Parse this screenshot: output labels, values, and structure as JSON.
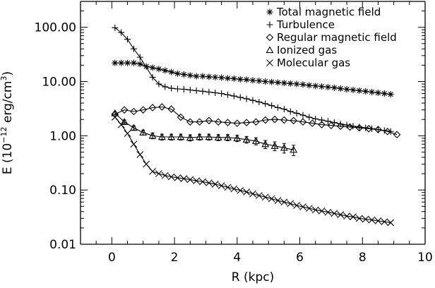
{
  "chart_data": {
    "type": "scatter",
    "xlabel": "R (kpc)",
    "ylabel": {
      "prefix": "E (10",
      "exp1": "−12",
      "middle": " erg/cm",
      "exp2": "3",
      "suffix": ")"
    },
    "xlim": [
      -1,
      10
    ],
    "ylim": [
      0.01,
      300
    ],
    "yscale": "log",
    "grid": false,
    "legend_position": "top-right",
    "x_ticks": [
      0,
      2,
      4,
      6,
      8,
      10
    ],
    "x_tick_labels": [
      "0",
      "2",
      "4",
      "6",
      "8",
      "10"
    ],
    "y_ticks": [
      0.01,
      0.1,
      1,
      10,
      100
    ],
    "y_tick_labels": [
      "0.01",
      "0.10",
      "1.00",
      "10.00",
      "100.00"
    ],
    "series": [
      {
        "name": "Total magnetic field",
        "marker": "asterisk",
        "x": [
          0.1,
          0.3,
          0.5,
          0.7,
          0.9,
          1.1,
          1.3,
          1.5,
          1.7,
          1.9,
          2.1,
          2.3,
          2.5,
          2.7,
          2.9,
          3.1,
          3.3,
          3.5,
          3.7,
          3.9,
          4.1,
          4.3,
          4.5,
          4.7,
          4.9,
          5.1,
          5.3,
          5.5,
          5.7,
          5.9,
          6.1,
          6.3,
          6.5,
          6.7,
          6.9,
          7.1,
          7.3,
          7.5,
          7.7,
          7.9,
          8.1,
          8.3,
          8.5,
          8.7,
          8.9
        ],
        "y": [
          22,
          22,
          22,
          22,
          21,
          19,
          18,
          17,
          16,
          15,
          14,
          13.5,
          13,
          12.5,
          12.5,
          12.2,
          12,
          11.8,
          11.5,
          11.3,
          11,
          10.8,
          10.5,
          10.3,
          10,
          9.8,
          9.6,
          9.4,
          9.2,
          9,
          8.8,
          8.5,
          8.3,
          8.1,
          7.9,
          7.7,
          7.4,
          7.2,
          7,
          6.8,
          6.6,
          6.4,
          6.2,
          6,
          5.8
        ]
      },
      {
        "name": "Turbulence",
        "marker": "plus",
        "x": [
          0.1,
          0.3,
          0.5,
          0.7,
          0.9,
          1.3,
          1.5,
          1.7,
          1.9,
          2.1,
          2.3,
          2.5,
          2.7,
          2.9,
          3.1,
          3.3,
          3.5,
          3.7,
          3.9,
          4.1,
          4.3,
          4.5,
          4.7,
          4.9,
          5.1,
          5.3,
          5.5,
          5.7,
          5.9,
          6.1,
          6.3,
          6.5,
          6.7,
          6.9,
          7.1,
          7.3,
          7.5,
          7.7,
          7.9,
          8.1,
          8.3,
          8.5,
          8.7,
          8.9
        ],
        "y": [
          98,
          80,
          60,
          40,
          28,
          12,
          9,
          8,
          7.5,
          7.3,
          7.2,
          7,
          6.8,
          6.6,
          6.4,
          6.2,
          6,
          5.7,
          5.4,
          5.1,
          4.8,
          4.5,
          4.2,
          3.9,
          3.6,
          3.3,
          3.1,
          2.8,
          2.6,
          2.4,
          2.2,
          2.05,
          1.95,
          1.85,
          1.75,
          1.65,
          1.58,
          1.5,
          1.45,
          1.4,
          1.35,
          1.3,
          1.25,
          1.2
        ]
      },
      {
        "name": "Regular magnetic field",
        "marker": "diamond",
        "x": [
          0.1,
          0.4,
          0.7,
          1.0,
          1.3,
          1.6,
          1.9,
          2.2,
          2.5,
          2.8,
          3.1,
          3.4,
          3.7,
          4.0,
          4.3,
          4.6,
          4.9,
          5.2,
          5.5,
          5.8,
          6.1,
          6.4,
          6.7,
          7.0,
          7.3,
          7.6,
          7.9,
          8.2,
          8.5,
          8.8,
          9.1
        ],
        "y": [
          2.5,
          3.0,
          2.8,
          3.0,
          3.3,
          3.4,
          3.1,
          2.2,
          1.8,
          1.8,
          1.9,
          1.8,
          1.75,
          1.7,
          1.75,
          1.8,
          1.95,
          2.0,
          1.95,
          1.9,
          1.8,
          1.7,
          1.6,
          1.55,
          1.5,
          1.45,
          1.4,
          1.35,
          1.3,
          1.2,
          1.05
        ]
      },
      {
        "name": "Ionized gas",
        "marker": "triangle",
        "x": [
          0.1,
          0.4,
          0.7,
          1.0,
          1.3,
          1.6,
          1.9,
          2.2,
          2.5,
          2.8,
          3.1,
          3.4,
          3.7,
          4.0,
          4.3,
          4.6,
          4.9,
          5.2,
          5.5,
          5.8
        ],
        "y": [
          2.6,
          1.8,
          1.4,
          1.15,
          1.0,
          0.95,
          0.95,
          0.95,
          0.92,
          0.95,
          0.95,
          0.93,
          0.93,
          0.9,
          0.85,
          0.8,
          0.7,
          0.65,
          0.6,
          0.55
        ],
        "err": [
          0.15,
          0.15,
          0.12,
          0.12,
          0.12,
          0.12,
          0.12,
          0.12,
          0.12,
          0.12,
          0.12,
          0.12,
          0.12,
          0.12,
          0.12,
          0.12,
          0.12,
          0.12,
          0.12,
          0.12
        ]
      },
      {
        "name": "Molecular gas",
        "marker": "x",
        "x": [
          0.1,
          0.3,
          0.5,
          0.7,
          0.9,
          1.1,
          1.3,
          1.5,
          1.7,
          1.9,
          2.1,
          2.3,
          2.5,
          2.7,
          2.9,
          3.1,
          3.3,
          3.5,
          3.7,
          3.9,
          4.1,
          4.3,
          4.5,
          4.7,
          4.9,
          5.1,
          5.3,
          5.5,
          5.7,
          5.9,
          6.1,
          6.3,
          6.5,
          6.7,
          6.9,
          7.1,
          7.3,
          7.5,
          7.7,
          7.9,
          8.1,
          8.3,
          8.5,
          8.7,
          8.9
        ],
        "y": [
          2.2,
          1.6,
          1.1,
          0.7,
          0.45,
          0.3,
          0.22,
          0.2,
          0.185,
          0.175,
          0.168,
          0.162,
          0.155,
          0.148,
          0.142,
          0.135,
          0.128,
          0.12,
          0.112,
          0.105,
          0.098,
          0.092,
          0.085,
          0.079,
          0.074,
          0.069,
          0.064,
          0.06,
          0.056,
          0.052,
          0.049,
          0.046,
          0.043,
          0.041,
          0.039,
          0.037,
          0.035,
          0.033,
          0.032,
          0.03,
          0.029,
          0.028,
          0.027,
          0.026,
          0.025
        ]
      }
    ]
  }
}
